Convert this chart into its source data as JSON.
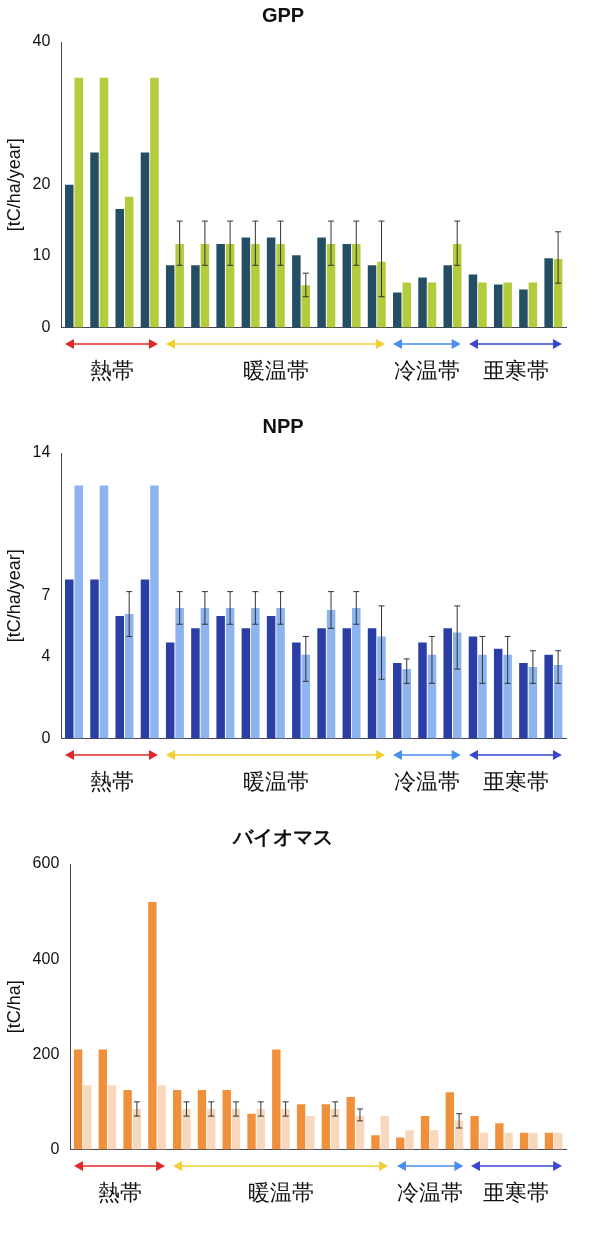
{
  "chart_data": [
    {
      "type": "bar",
      "title": "GPP",
      "ylabel": "[tC/ha/year]",
      "categories": [
        null,
        null,
        null,
        null,
        null,
        null,
        null,
        null,
        null,
        null,
        null,
        null,
        null,
        null,
        null,
        null,
        null,
        null,
        null,
        null
      ],
      "ylim": [
        0,
        40
      ],
      "yticks": [
        0,
        10,
        20,
        40
      ],
      "annotations": [
        "熱帯",
        "暖温帯",
        "冷温帯",
        "亜寒帯"
      ],
      "series": [
        {
          "color": "#244e63",
          "values": [
            20,
            24.5,
            16.6,
            24.5,
            8.7,
            8.7,
            11.7,
            12.6,
            12.6,
            10.1,
            12.6,
            11.7,
            8.7,
            4.9,
            7.0,
            8.7,
            7.4,
            6.0,
            5.3,
            9.7
          ]
        },
        {
          "color": "#b3cc3c",
          "values": [
            35,
            35,
            18.3,
            35,
            11.7,
            11.7,
            11.7,
            11.7,
            11.7,
            5.9,
            11.7,
            11.7,
            9.2,
            6.3,
            6.3,
            11.7,
            6.3,
            6.3,
            6.3,
            9.6
          ],
          "errors": [
            null,
            null,
            null,
            null,
            [
              8.7,
              14.9
            ],
            [
              8.7,
              14.9
            ],
            [
              8.7,
              14.9
            ],
            [
              8.7,
              14.9
            ],
            [
              8.7,
              14.9
            ],
            [
              4.3,
              7.6
            ],
            [
              8.7,
              14.9
            ],
            [
              8.7,
              14.9
            ],
            [
              4.3,
              14.9
            ],
            null,
            null,
            [
              8.7,
              14.9
            ],
            null,
            null,
            null,
            [
              6.2,
              13.4
            ]
          ]
        }
      ]
    },
    {
      "type": "bar",
      "title": "NPP",
      "ylabel": "[tC/ha/year]",
      "categories": [
        null,
        null,
        null,
        null,
        null,
        null,
        null,
        null,
        null,
        null,
        null,
        null,
        null,
        null,
        null,
        null,
        null,
        null,
        null,
        null
      ],
      "ylim": [
        0,
        14
      ],
      "yticks": [
        0,
        4,
        7,
        14
      ],
      "annotations": [
        "熱帯",
        "暖温帯",
        "冷温帯",
        "亜寒帯"
      ],
      "series": [
        {
          "color": "#2a3ea6",
          "values": [
            7.8,
            7.8,
            6.0,
            7.8,
            4.7,
            5.4,
            6.0,
            5.4,
            6.0,
            4.7,
            5.4,
            5.4,
            5.4,
            3.7,
            4.7,
            5.4,
            5.0,
            4.4,
            3.7,
            4.1
          ]
        },
        {
          "color": "#8db4ee",
          "values": [
            12.4,
            12.4,
            6.1,
            12.4,
            6.4,
            6.4,
            6.4,
            6.4,
            6.4,
            4.1,
            6.3,
            6.4,
            5.0,
            3.4,
            4.1,
            5.2,
            4.1,
            4.1,
            3.5,
            3.6
          ],
          "errors": [
            null,
            null,
            [
              5.0,
              7.2
            ],
            null,
            [
              5.6,
              7.2
            ],
            [
              5.6,
              7.2
            ],
            [
              5.6,
              7.2
            ],
            [
              5.6,
              7.2
            ],
            [
              5.6,
              7.2
            ],
            [
              2.8,
              5.0
            ],
            [
              5.4,
              7.2
            ],
            [
              5.6,
              7.2
            ],
            [
              2.9,
              6.5
            ],
            [
              2.7,
              3.9
            ],
            [
              2.7,
              5.0
            ],
            [
              3.4,
              6.5
            ],
            [
              2.7,
              5.0
            ],
            [
              2.7,
              5.0
            ],
            [
              2.7,
              4.3
            ],
            [
              2.7,
              4.3
            ]
          ]
        }
      ]
    },
    {
      "type": "bar",
      "title": "バイオマス",
      "ylabel": "[tC/ha]",
      "categories": [
        null,
        null,
        null,
        null,
        null,
        null,
        null,
        null,
        null,
        null,
        null,
        null,
        null,
        null,
        null,
        null,
        null,
        null,
        null,
        null
      ],
      "ylim": [
        0,
        600
      ],
      "yticks": [
        0,
        200,
        400,
        600
      ],
      "annotations": [
        "熱帯",
        "暖温帯",
        "冷温帯",
        "亜寒帯"
      ],
      "series": [
        {
          "color": "#f0903a",
          "values": [
            210,
            210,
            125,
            520,
            125,
            125,
            125,
            75,
            210,
            95,
            95,
            110,
            30,
            25,
            70,
            120,
            70,
            55,
            35,
            35
          ]
        },
        {
          "color": "#f8d8bd",
          "values": [
            135,
            135,
            85,
            135,
            85,
            85,
            85,
            85,
            85,
            70,
            85,
            70,
            70,
            40,
            40,
            60,
            35,
            35,
            35,
            35
          ],
          "errors": [
            null,
            null,
            [
              70,
              100
            ],
            null,
            [
              70,
              100
            ],
            [
              70,
              100
            ],
            [
              70,
              100
            ],
            [
              70,
              100
            ],
            [
              70,
              100
            ],
            null,
            [
              70,
              100
            ],
            [
              60,
              85
            ],
            null,
            null,
            null,
            [
              45,
              75
            ],
            null,
            null,
            null,
            null
          ]
        }
      ]
    }
  ]
}
